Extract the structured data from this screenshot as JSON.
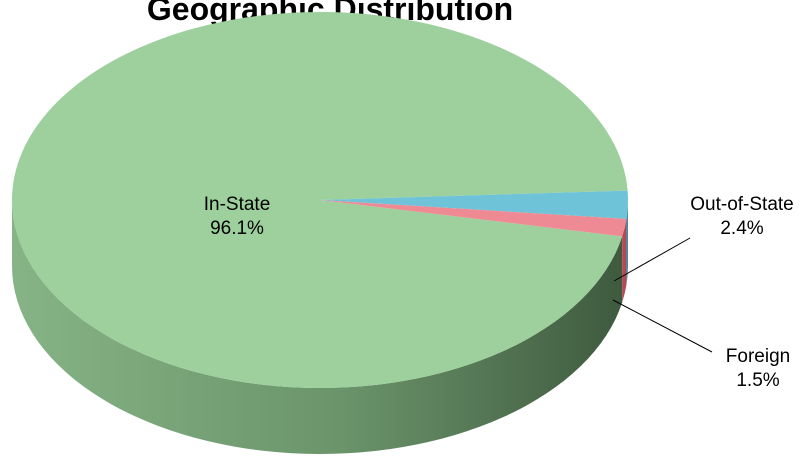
{
  "chart_data": {
    "type": "pie",
    "title": "Geographic Distribution",
    "style": "3d",
    "slices": [
      {
        "label": "In-State",
        "value": 96.1,
        "value_text": "96.1%",
        "color": "#9dd09d",
        "side_color": "#6f9a6f"
      },
      {
        "label": "Out-of-State",
        "value": 2.4,
        "value_text": "2.4%",
        "color": "#6ec3d8",
        "side_color": "#3f8ea3"
      },
      {
        "label": "Foreign",
        "value": 1.5,
        "value_text": "1.5%",
        "color": "#ee8a93",
        "side_color": "#b24a55"
      }
    ]
  }
}
